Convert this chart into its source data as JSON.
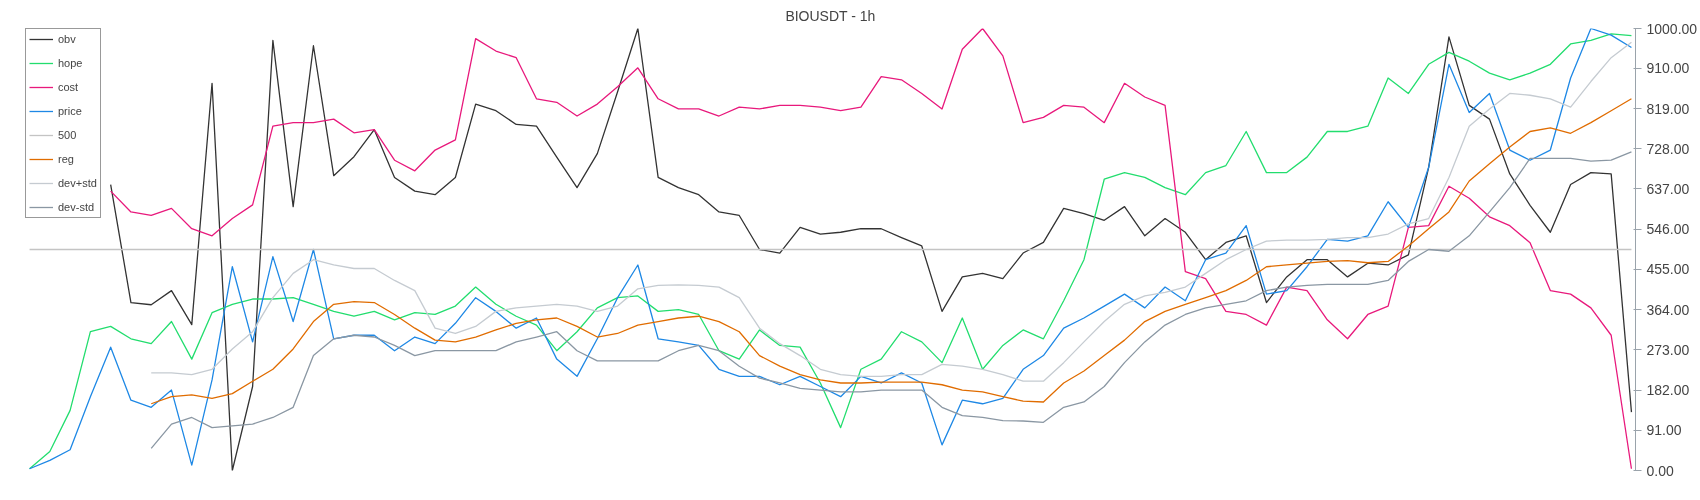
{
  "chart_data": {
    "type": "line",
    "title": "BIOUSDT - 1h",
    "categories": [
      null,
      null,
      null,
      null,
      null,
      null,
      null,
      null,
      null,
      null,
      null,
      null,
      null,
      null,
      null,
      null,
      null,
      null,
      null,
      null,
      null,
      null,
      null,
      null,
      null,
      null,
      null,
      null,
      null,
      null,
      null,
      null,
      null,
      null,
      null,
      null,
      null,
      null,
      null,
      null,
      null,
      null,
      null,
      null,
      null,
      null,
      null,
      null,
      null,
      null,
      null,
      null,
      null,
      null,
      null,
      null,
      null,
      null,
      null,
      null,
      null,
      null,
      null,
      null,
      null,
      null,
      null,
      null,
      null,
      null,
      null,
      null,
      null,
      null,
      null,
      null,
      null,
      null,
      null,
      null
    ],
    "ylim": [
      0,
      1000
    ],
    "yticks": [
      {
        "value": 0,
        "label": "0.00"
      },
      {
        "value": 91,
        "label": "91.00"
      },
      {
        "value": 182,
        "label": "182.00"
      },
      {
        "value": 273,
        "label": "273.00"
      },
      {
        "value": 364,
        "label": "364.00"
      },
      {
        "value": 455,
        "label": "455.00"
      },
      {
        "value": 546,
        "label": "546.00"
      },
      {
        "value": 637,
        "label": "637.00"
      },
      {
        "value": 728,
        "label": "728.00"
      },
      {
        "value": 819,
        "label": "819.00"
      },
      {
        "value": 910,
        "label": "910.00"
      },
      {
        "value": 1000,
        "label": "1000.00"
      }
    ],
    "tick_labels": "y",
    "grid": false,
    "legend": "top left",
    "marker": "none",
    "line_style": "solid",
    "series": [
      {
        "name": "obv",
        "color": "#333333",
        "values": [
          null,
          null,
          null,
          null,
          647,
          380,
          375,
          407,
          330,
          876,
          0,
          190,
          973,
          597,
          961,
          667,
          710,
          771,
          663,
          632,
          624,
          663,
          829,
          814,
          783,
          779,
          709,
          640,
          717,
          857,
          1000,
          663,
          640,
          624,
          585,
          577,
          500,
          492,
          550,
          535,
          539,
          547,
          547,
          527,
          508,
          360,
          438,
          446,
          434,
          492,
          516,
          593,
          581,
          566,
          597,
          531,
          570,
          539,
          477,
          516,
          531,
          380,
          438,
          477,
          477,
          438,
          469,
          465,
          488,
          686,
          981,
          826,
          795,
          671,
          600,
          539,
          647,
          674,
          671,
          132
        ]
      },
      {
        "name": "hope",
        "color": "#22dd6e",
        "values": [
          4,
          43,
          136,
          314,
          326,
          298,
          287,
          337,
          252,
          357,
          376,
          388,
          388,
          391,
          376,
          360,
          349,
          360,
          341,
          357,
          353,
          372,
          415,
          376,
          349,
          329,
          271,
          314,
          368,
          391,
          395,
          360,
          364,
          353,
          271,
          252,
          318,
          283,
          279,
          198,
          97,
          229,
          252,
          314,
          291,
          244,
          345,
          229,
          283,
          318,
          298,
          384,
          477,
          659,
          674,
          663,
          640,
          624,
          674,
          690,
          767,
          674,
          674,
          709,
          767,
          767,
          779,
          888,
          853,
          919,
          946,
          926,
          899,
          884,
          899,
          919,
          965,
          973,
          988,
          984
        ]
      },
      {
        "name": "cost",
        "color": "#e8197c",
        "values": [
          null,
          null,
          null,
          null,
          632,
          585,
          577,
          593,
          547,
          531,
          570,
          601,
          779,
          787,
          787,
          795,
          764,
          771,
          702,
          678,
          725,
          748,
          977,
          949,
          934,
          841,
          833,
          802,
          829,
          868,
          911,
          841,
          818,
          818,
          802,
          822,
          818,
          826,
          826,
          822,
          814,
          822,
          891,
          884,
          853,
          818,
          953,
          1000,
          938,
          787,
          799,
          826,
          822,
          787,
          876,
          845,
          826,
          450,
          434,
          360,
          353,
          329,
          415,
          407,
          341,
          298,
          353,
          372,
          550,
          554,
          643,
          616,
          574,
          554,
          515,
          407,
          399,
          368,
          306,
          4
        ]
      },
      {
        "name": "price",
        "color": "#1e88e5",
        "values": [
          4,
          23,
          47,
          167,
          279,
          159,
          143,
          182,
          12,
          205,
          461,
          291,
          484,
          337,
          500,
          298,
          306,
          306,
          271,
          302,
          287,
          333,
          391,
          360,
          322,
          345,
          252,
          213,
          298,
          391,
          465,
          298,
          291,
          283,
          229,
          213,
          213,
          194,
          213,
          190,
          167,
          213,
          198,
          221,
          198,
          58,
          159,
          151,
          163,
          229,
          260,
          322,
          345,
          372,
          399,
          368,
          415,
          384,
          477,
          492,
          554,
          399,
          407,
          461,
          523,
          519,
          531,
          608,
          550,
          686,
          919,
          810,
          853,
          725,
          702,
          725,
          888,
          1000,
          985,
          957
        ]
      },
      {
        "name": "500",
        "color": "#c4c4c4",
        "values": [
          500,
          500,
          500,
          500,
          500,
          500,
          500,
          500,
          500,
          500,
          500,
          500,
          500,
          500,
          500,
          500,
          500,
          500,
          500,
          500,
          500,
          500,
          500,
          500,
          500,
          500,
          500,
          500,
          500,
          500,
          500,
          500,
          500,
          500,
          500,
          500,
          500,
          500,
          500,
          500,
          500,
          500,
          500,
          500,
          500,
          500,
          500,
          500,
          500,
          500,
          500,
          500,
          500,
          500,
          500,
          500,
          500,
          500,
          500,
          500,
          500,
          500,
          500,
          500,
          500,
          500,
          500,
          500,
          500,
          500,
          500,
          500,
          500,
          500,
          500,
          500,
          500,
          500,
          500,
          500
        ]
      },
      {
        "name": "reg",
        "color": "#e06c00",
        "values": [
          null,
          null,
          null,
          null,
          null,
          null,
          151,
          167,
          171,
          163,
          174,
          202,
          229,
          275,
          337,
          376,
          382,
          380,
          353,
          322,
          295,
          291,
          302,
          318,
          333,
          341,
          345,
          326,
          302,
          310,
          329,
          337,
          345,
          349,
          337,
          314,
          260,
          236,
          217,
          205,
          198,
          198,
          200,
          200,
          200,
          194,
          182,
          178,
          167,
          157,
          155,
          198,
          225,
          260,
          295,
          337,
          360,
          376,
          391,
          407,
          430,
          461,
          465,
          469,
          473,
          475,
          470,
          473,
          508,
          547,
          585,
          655,
          694,
          732,
          767,
          775,
          763,
          787,
          814,
          841
        ]
      },
      {
        "name": "dev+std",
        "color": "#c5cbd1",
        "values": [
          null,
          null,
          null,
          null,
          null,
          null,
          221,
          221,
          217,
          229,
          275,
          314,
          391,
          446,
          477,
          465,
          457,
          457,
          430,
          407,
          322,
          310,
          326,
          360,
          368,
          372,
          376,
          372,
          360,
          372,
          411,
          419,
          420,
          419,
          415,
          391,
          322,
          287,
          260,
          229,
          217,
          213,
          213,
          217,
          217,
          240,
          236,
          229,
          217,
          202,
          202,
          244,
          291,
          337,
          376,
          395,
          403,
          415,
          446,
          477,
          500,
          519,
          521,
          521,
          523,
          527,
          527,
          535,
          558,
          570,
          663,
          779,
          818,
          853,
          849,
          841,
          822,
          880,
          934,
          969
        ]
      },
      {
        "name": "dev-std",
        "color": "#8a97a3",
        "values": [
          null,
          null,
          null,
          null,
          null,
          null,
          50,
          105,
          120,
          97,
          101,
          105,
          120,
          143,
          260,
          298,
          306,
          302,
          283,
          260,
          271,
          271,
          271,
          271,
          291,
          302,
          314,
          271,
          248,
          248,
          248,
          248,
          271,
          283,
          271,
          236,
          209,
          198,
          186,
          182,
          178,
          178,
          182,
          182,
          182,
          143,
          124,
          120,
          113,
          112,
          109,
          143,
          155,
          190,
          244,
          291,
          329,
          353,
          368,
          376,
          384,
          407,
          415,
          419,
          421,
          421,
          421,
          430,
          473,
          500,
          496,
          531,
          585,
          640,
          706,
          706,
          706,
          700,
          702,
          721
        ]
      }
    ]
  }
}
